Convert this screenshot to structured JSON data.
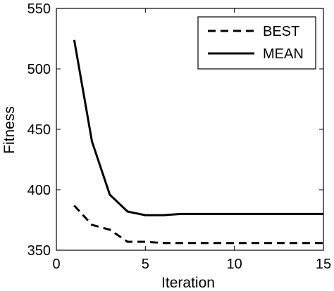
{
  "chart_data": {
    "type": "line",
    "xlabel": "Iteration",
    "ylabel": "Fitness",
    "xlim": [
      0,
      15
    ],
    "ylim": [
      350,
      550
    ],
    "xticks": [
      0,
      5,
      10,
      15
    ],
    "yticks": [
      350,
      400,
      450,
      500,
      550
    ],
    "grid": false,
    "legend_position": "top-right",
    "series": [
      {
        "name": "BEST",
        "style": "dashed",
        "color": "#000000",
        "x": [
          1,
          2,
          3,
          4,
          5,
          6,
          7,
          8,
          9,
          10,
          11,
          12,
          13,
          14,
          15
        ],
        "y": [
          387,
          371,
          367,
          357,
          357,
          356,
          356,
          356,
          356,
          356,
          356,
          356,
          356,
          356,
          356
        ]
      },
      {
        "name": "MEAN",
        "style": "solid",
        "color": "#000000",
        "x": [
          1,
          2,
          3,
          4,
          5,
          6,
          7,
          8,
          9,
          10,
          11,
          12,
          13,
          14,
          15
        ],
        "y": [
          524,
          440,
          396,
          382,
          379,
          379,
          380,
          380,
          380,
          380,
          380,
          380,
          380,
          380,
          380
        ]
      }
    ]
  }
}
